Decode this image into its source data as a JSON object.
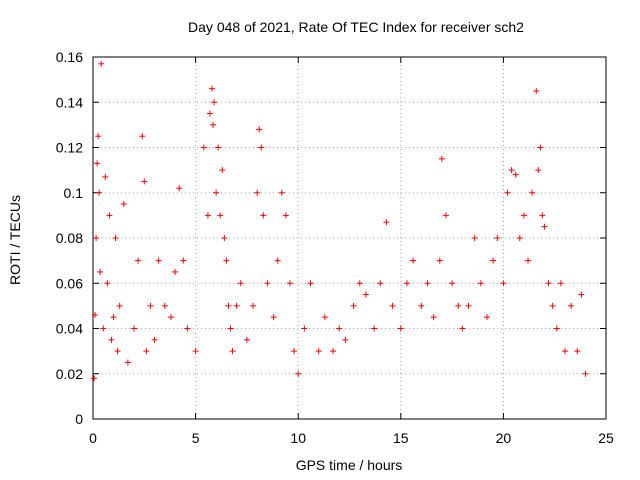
{
  "chart_data": {
    "type": "scatter",
    "title": "Day 048 of 2021, Rate Of TEC Index for receiver sch2",
    "xlabel": "GPS time / hours",
    "ylabel": "ROTI / TECUs",
    "xlim": [
      0,
      25
    ],
    "ylim": [
      0,
      0.16
    ],
    "x_ticks": [
      "0",
      "5",
      "10",
      "15",
      "20",
      "25"
    ],
    "y_ticks": [
      "0",
      "0.02",
      "0.04",
      "0.06",
      "0.08",
      "0.1",
      "0.12",
      "0.14",
      "0.16"
    ],
    "grid": true,
    "marker": "+",
    "color": "#ff0000",
    "series": [
      {
        "x": [
          0.05,
          0.1,
          0.15,
          0.2,
          0.25,
          0.3,
          0.35,
          0.4,
          0.5,
          0.6,
          0.7,
          0.8,
          0.9,
          1.0,
          1.1,
          1.2,
          1.3,
          1.5,
          1.7,
          2.0,
          2.2,
          2.4,
          2.5,
          2.6,
          2.8,
          3.0,
          3.2,
          3.5,
          3.8,
          4.0,
          4.2,
          4.4,
          4.6,
          5.0,
          5.4,
          5.6,
          5.7,
          5.8,
          5.85,
          5.9,
          6.0,
          6.1,
          6.2,
          6.3,
          6.4,
          6.5,
          6.6,
          6.7,
          6.8,
          7.0,
          7.2,
          7.5,
          7.8,
          8.0,
          8.1,
          8.2,
          8.3,
          8.5,
          8.8,
          9.0,
          9.2,
          9.4,
          9.6,
          9.8,
          10.0,
          10.3,
          10.6,
          11.0,
          11.3,
          11.7,
          12.0,
          12.3,
          12.7,
          13.0,
          13.3,
          13.7,
          14.0,
          14.3,
          14.6,
          15.0,
          15.3,
          15.6,
          16.0,
          16.3,
          16.6,
          16.9,
          17.0,
          17.2,
          17.5,
          17.8,
          18.0,
          18.3,
          18.6,
          18.9,
          19.2,
          19.5,
          19.7,
          20.0,
          20.2,
          20.4,
          20.6,
          20.8,
          21.0,
          21.2,
          21.4,
          21.6,
          21.7,
          21.8,
          21.9,
          22.0,
          22.2,
          22.4,
          22.6,
          22.8,
          23.0,
          23.3,
          23.6,
          23.8,
          24.0
        ],
        "y": [
          0.018,
          0.046,
          0.08,
          0.113,
          0.125,
          0.1,
          0.065,
          0.157,
          0.04,
          0.107,
          0.06,
          0.09,
          0.035,
          0.045,
          0.08,
          0.03,
          0.05,
          0.095,
          0.025,
          0.04,
          0.07,
          0.125,
          0.105,
          0.03,
          0.05,
          0.035,
          0.07,
          0.05,
          0.045,
          0.065,
          0.102,
          0.07,
          0.04,
          0.03,
          0.12,
          0.09,
          0.135,
          0.146,
          0.13,
          0.14,
          0.1,
          0.12,
          0.09,
          0.11,
          0.08,
          0.07,
          0.05,
          0.04,
          0.03,
          0.05,
          0.06,
          0.035,
          0.05,
          0.1,
          0.128,
          0.12,
          0.09,
          0.06,
          0.045,
          0.07,
          0.1,
          0.09,
          0.06,
          0.03,
          0.02,
          0.04,
          0.06,
          0.03,
          0.045,
          0.03,
          0.04,
          0.035,
          0.05,
          0.06,
          0.055,
          0.04,
          0.06,
          0.087,
          0.05,
          0.04,
          0.06,
          0.07,
          0.05,
          0.06,
          0.045,
          0.07,
          0.115,
          0.09,
          0.06,
          0.05,
          0.04,
          0.05,
          0.08,
          0.06,
          0.045,
          0.07,
          0.08,
          0.06,
          0.1,
          0.11,
          0.108,
          0.08,
          0.09,
          0.07,
          0.1,
          0.145,
          0.11,
          0.12,
          0.09,
          0.085,
          0.06,
          0.05,
          0.04,
          0.06,
          0.03,
          0.05,
          0.03,
          0.055,
          0.02
        ]
      }
    ]
  }
}
